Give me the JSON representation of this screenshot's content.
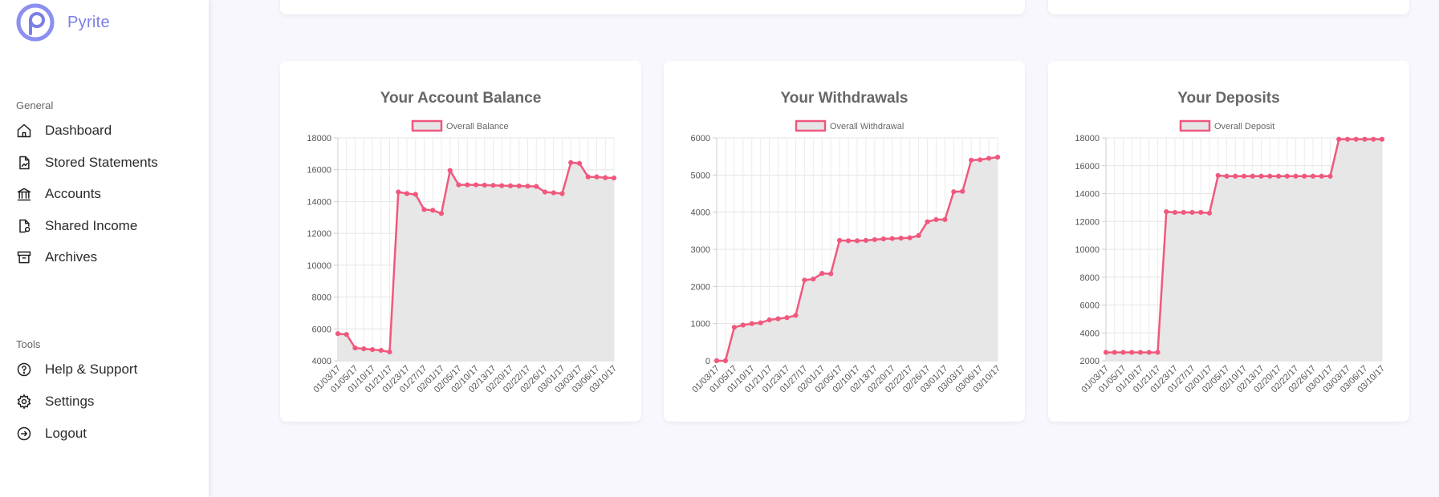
{
  "app": {
    "name": "Pyrite"
  },
  "sidebar": {
    "general_label": "General",
    "tools_label": "Tools",
    "general_items": [
      {
        "label": "Dashboard",
        "icon": "home-icon"
      },
      {
        "label": "Stored Statements",
        "icon": "file-chart-icon"
      },
      {
        "label": "Accounts",
        "icon": "bank-icon"
      },
      {
        "label": "Shared Income",
        "icon": "file-share-icon"
      },
      {
        "label": "Archives",
        "icon": "archive-icon"
      }
    ],
    "tool_items": [
      {
        "label": "Help & Support",
        "icon": "help-icon"
      },
      {
        "label": "Settings",
        "icon": "gear-icon"
      },
      {
        "label": "Logout",
        "icon": "logout-icon"
      }
    ]
  },
  "colors": {
    "accent": "#7b7fe6",
    "line": "#f0587e",
    "fill": "#e6e6e6"
  },
  "chart_data": [
    {
      "type": "area",
      "title": "Your Account Balance",
      "legend": "Overall Balance",
      "x_ticks": [
        "01/03/17",
        "01/05/17",
        "01/10/17",
        "01/21/17",
        "01/23/17",
        "01/27/17",
        "02/01/17",
        "02/05/17",
        "02/10/17",
        "02/13/17",
        "02/20/17",
        "02/22/17",
        "02/26/17",
        "03/01/17",
        "03/03/17",
        "03/06/17",
        "03/10/17"
      ],
      "y_ticks": [
        "4000",
        "6000",
        "8000",
        "10000",
        "12000",
        "14000",
        "16000",
        "18000"
      ],
      "ylim": [
        4000,
        18000
      ],
      "values": [
        5700,
        5650,
        4800,
        4750,
        4700,
        4650,
        4550,
        14600,
        14500,
        14450,
        13500,
        13450,
        13250,
        15950,
        15050,
        15050,
        15050,
        15030,
        15020,
        15000,
        14990,
        14980,
        14970,
        14950,
        14600,
        14550,
        14500,
        16450,
        16400,
        15550,
        15550,
        15500,
        15480
      ]
    },
    {
      "type": "area",
      "title": "Your Withdrawals",
      "legend": "Overall Withdrawal",
      "x_ticks": [
        "01/03/17",
        "01/05/17",
        "01/10/17",
        "01/21/17",
        "01/23/17",
        "01/27/17",
        "02/01/17",
        "02/05/17",
        "02/10/17",
        "02/13/17",
        "02/20/17",
        "02/22/17",
        "02/26/17",
        "03/01/17",
        "03/03/17",
        "03/06/17",
        "03/10/17"
      ],
      "y_ticks": [
        "0",
        "1000",
        "2000",
        "3000",
        "4000",
        "5000",
        "6000"
      ],
      "ylim": [
        0,
        6000
      ],
      "values": [
        0,
        0,
        900,
        960,
        1000,
        1020,
        1100,
        1130,
        1160,
        1220,
        2170,
        2200,
        2350,
        2340,
        3240,
        3230,
        3230,
        3240,
        3260,
        3280,
        3290,
        3300,
        3310,
        3370,
        3740,
        3800,
        3800,
        4550,
        4560,
        5400,
        5410,
        5450,
        5480
      ]
    },
    {
      "type": "area",
      "title": "Your Deposits",
      "legend": "Overall Deposit",
      "x_ticks": [
        "01/03/17",
        "01/05/17",
        "01/10/17",
        "01/21/17",
        "01/23/17",
        "01/27/17",
        "02/01/17",
        "02/05/17",
        "02/10/17",
        "02/13/17",
        "02/20/17",
        "02/22/17",
        "02/26/17",
        "03/01/17",
        "03/03/17",
        "03/06/17",
        "03/10/17"
      ],
      "y_ticks": [
        "2000",
        "4000",
        "6000",
        "8000",
        "10000",
        "12000",
        "14000",
        "16000",
        "18000"
      ],
      "ylim": [
        2000,
        18000
      ],
      "values": [
        2600,
        2600,
        2600,
        2600,
        2600,
        2600,
        2600,
        12700,
        12650,
        12650,
        12650,
        12650,
        12600,
        15300,
        15250,
        15250,
        15250,
        15250,
        15250,
        15250,
        15250,
        15250,
        15250,
        15250,
        15250,
        15250,
        15250,
        17900,
        17900,
        17900,
        17900,
        17900,
        17900
      ]
    }
  ]
}
